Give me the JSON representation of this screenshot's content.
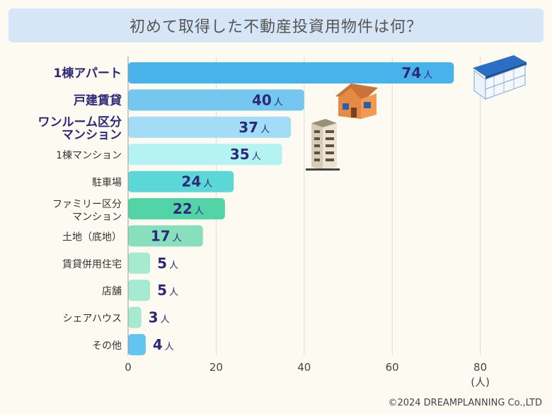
{
  "title": "初めて取得した不動産投資用物件は何？",
  "credit": "©2024 DREAMPLANNING Co.,LTD",
  "chart_data": {
    "type": "bar",
    "orientation": "horizontal",
    "title": "初めて取得した不動産投資用物件は何？",
    "categories": [
      "1棟アパート",
      "戸建賃貸",
      "ワンルーム区分\nマンション",
      "1棟マンション",
      "駐車場",
      "ファミリー区分\nマンション",
      "土地（底地）",
      "賃貸併用住宅",
      "店舗",
      "シェアハウス",
      "その他"
    ],
    "values": [
      74,
      40,
      37,
      35,
      24,
      22,
      17,
      5,
      5,
      3,
      4
    ],
    "value_unit": "人",
    "xunit": "(人)",
    "xticks": [
      "0",
      "20",
      "40",
      "60",
      "80"
    ],
    "xlim": [
      0,
      90
    ],
    "grid": true,
    "highlighted_categories": [
      0,
      1,
      2
    ],
    "colors": [
      "#48b3ea",
      "#76c7f0",
      "#a3dcf6",
      "#b5f3f3",
      "#5ad7d6",
      "#53d3a8",
      "#87dfbd",
      "#a7ead2",
      "#a7ead2",
      "#a7ead2",
      "#63c4f1"
    ]
  }
}
